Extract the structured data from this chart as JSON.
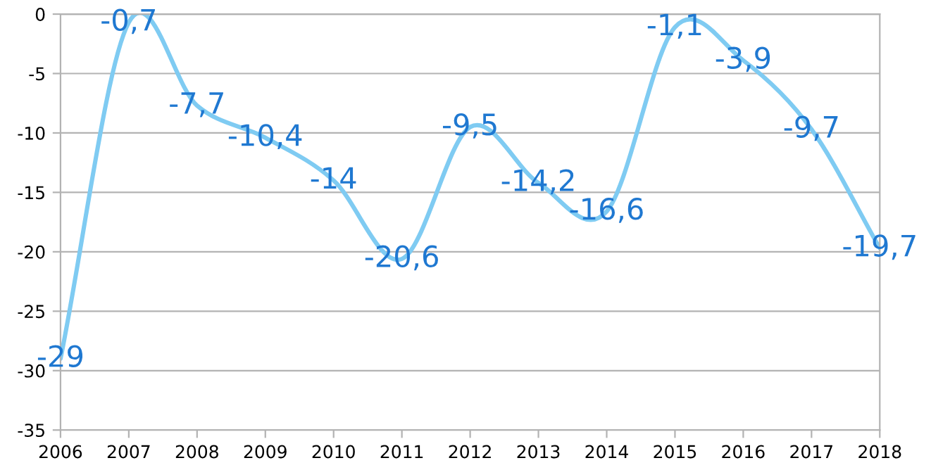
{
  "chart_data": {
    "type": "line",
    "x": [
      2006,
      2007,
      2008,
      2009,
      2010,
      2011,
      2012,
      2013,
      2014,
      2015,
      2016,
      2017,
      2018
    ],
    "series": [
      {
        "color": "#7fcbf2",
        "values": [
          -29,
          -0.7,
          -7.7,
          -10.4,
          -14,
          -20.6,
          -9.5,
          -14.2,
          -16.6,
          -1.1,
          -3.9,
          -9.7,
          -19.7
        ],
        "value_labels": [
          "-29",
          "-0,7",
          "-7,7",
          "-10,4",
          "-14",
          "-20,6",
          "-9,5",
          "-14,2",
          "-16,6",
          "-1,1",
          "-3,9",
          "-9,7",
          "-19,7"
        ]
      }
    ],
    "xlim": [
      2006,
      2018
    ],
    "xticks": [
      2006,
      2007,
      2008,
      2009,
      2010,
      2011,
      2012,
      2013,
      2014,
      2015,
      2016,
      2017,
      2018
    ],
    "ylim": [
      -35,
      0
    ],
    "yticks": [
      -35,
      -30,
      -25,
      -20,
      -15,
      -10,
      -5,
      0
    ],
    "grid": "y",
    "marker": "none",
    "line_style": "solid"
  }
}
